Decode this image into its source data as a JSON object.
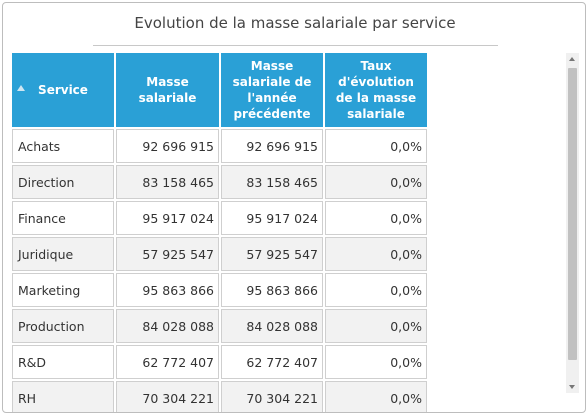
{
  "title": "Evolution de la masse salariale par service",
  "columns": {
    "service": "Service",
    "masse": "Masse salariale",
    "masse_prec": "Masse salariale de l'année précédente",
    "taux": "Taux d'évolution de la masse salariale"
  },
  "rows": [
    {
      "service": "Achats",
      "masse": "92 696 915",
      "masse_prec": "92 696 915",
      "taux": "0,0%"
    },
    {
      "service": "Direction",
      "masse": "83 158 465",
      "masse_prec": "83 158 465",
      "taux": "0,0%"
    },
    {
      "service": "Finance",
      "masse": "95 917 024",
      "masse_prec": "95 917 024",
      "taux": "0,0%"
    },
    {
      "service": "Juridique",
      "masse": "57 925 547",
      "masse_prec": "57 925 547",
      "taux": "0,0%"
    },
    {
      "service": "Marketing",
      "masse": "95 863 866",
      "masse_prec": "95 863 866",
      "taux": "0,0%"
    },
    {
      "service": "Production",
      "masse": "84 028 088",
      "masse_prec": "84 028 088",
      "taux": "0,0%"
    },
    {
      "service": "R&D",
      "masse": "62 772 407",
      "masse_prec": "62 772 407",
      "taux": "0,0%"
    },
    {
      "service": "RH",
      "masse": "70 304 221",
      "masse_prec": "70 304 221",
      "taux": "0,0%"
    }
  ],
  "colors": {
    "header": "#2aa0d6",
    "alt_row": "#f2f2f2"
  },
  "icons": {
    "sort": "sort-ascending-icon"
  }
}
